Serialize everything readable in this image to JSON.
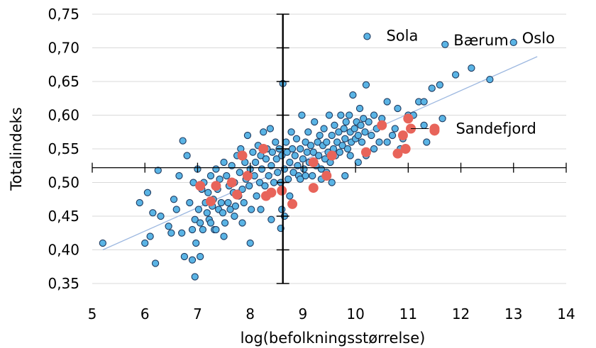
{
  "chart_data": {
    "type": "scatter",
    "title": "",
    "xlabel": "log(befolkningsstørrelse)",
    "ylabel": "Totalindeks",
    "xlim": [
      5,
      14
    ],
    "ylim": [
      0.35,
      0.75
    ],
    "x_ticks": [
      "5",
      "6",
      "7",
      "8",
      "9",
      "10",
      "11",
      "12",
      "13",
      "14"
    ],
    "y_ticks": [
      "0,35",
      "0,40",
      "0,45",
      "0,50",
      "0,55",
      "0,60",
      "0,65",
      "0,70",
      "0,75"
    ],
    "grid": "horizontal",
    "colors": {
      "municipality_fill": "#5ab4e5",
      "municipality_edge": "#1f3a5f",
      "highlight_fill": "#e8645a",
      "trendline": "#9db8e0",
      "crosshair": "#000000"
    },
    "crosshair": {
      "x": 8.62,
      "y": 0.522
    },
    "trendline": {
      "x": [
        5.2,
        13.45
      ],
      "y": [
        0.4,
        0.687
      ]
    },
    "annotations": [
      {
        "text": "Sola",
        "x": 10.22,
        "y": 0.717
      },
      {
        "text": "Bærum",
        "x": 11.7,
        "y": 0.705
      },
      {
        "text": "Oslo",
        "x": 13.0,
        "y": 0.708
      },
      {
        "text": "Sandefjord",
        "x": 11.5,
        "y": 0.58
      }
    ],
    "series": [
      {
        "marker": "municipality",
        "x": [
          5.2,
          5.9,
          6.0,
          6.05,
          6.1,
          6.15,
          6.2,
          6.25,
          6.3,
          6.45,
          6.5,
          6.55,
          6.6,
          6.65,
          6.7,
          6.72,
          6.75,
          6.8,
          6.85,
          6.9,
          6.92,
          6.95,
          6.97,
          7.0,
          7.02,
          7.05,
          7.08,
          7.1,
          7.12,
          7.15,
          7.18,
          7.2,
          7.22,
          7.25,
          7.28,
          7.3,
          7.32,
          7.35,
          7.38,
          7.4,
          7.42,
          7.45,
          7.48,
          7.5,
          7.52,
          7.55,
          7.58,
          7.6,
          7.62,
          7.65,
          7.68,
          7.7,
          7.72,
          7.75,
          7.78,
          7.8,
          7.82,
          7.85,
          7.88,
          7.9,
          7.92,
          7.95,
          7.98,
          8.0,
          8.02,
          8.05,
          8.08,
          8.1,
          8.12,
          8.15,
          8.18,
          8.2,
          8.22,
          8.25,
          8.28,
          8.3,
          8.32,
          8.35,
          8.38,
          8.4,
          8.42,
          8.45,
          8.48,
          8.5,
          8.52,
          8.55,
          8.58,
          8.6,
          8.62,
          8.65,
          8.68,
          8.7,
          8.72,
          8.75,
          8.78,
          8.8,
          8.82,
          8.85,
          8.88,
          8.9,
          8.92,
          8.95,
          8.98,
          9.0,
          9.02,
          9.05,
          9.08,
          9.1,
          9.12,
          9.15,
          9.18,
          9.2,
          9.22,
          9.25,
          9.28,
          9.3,
          9.32,
          9.35,
          9.38,
          9.4,
          9.42,
          9.45,
          9.48,
          9.5,
          9.52,
          9.55,
          9.58,
          9.6,
          9.62,
          9.65,
          9.68,
          9.7,
          9.72,
          9.75,
          9.78,
          9.8,
          9.82,
          9.85,
          9.88,
          9.9,
          9.92,
          9.95,
          9.98,
          10.0,
          10.02,
          10.05,
          10.08,
          10.1,
          10.12,
          10.15,
          10.18,
          10.2,
          10.25,
          10.3,
          10.35,
          10.4,
          10.45,
          10.5,
          10.6,
          10.7,
          10.75,
          10.8,
          10.9,
          11.0,
          11.1,
          11.2,
          11.3,
          11.35,
          11.45,
          11.6,
          11.65,
          11.9,
          12.2,
          12.55,
          6.95,
          7.05,
          7.35,
          7.5,
          7.85,
          8.0,
          8.4,
          8.58,
          8.6,
          8.65,
          8.75,
          9.05,
          9.35,
          9.55,
          9.8,
          10.05,
          10.2,
          10.6,
          10.85,
          11.3,
          6.9,
          7.25,
          7.7,
          8.2,
          8.95,
          9.45,
          9.9,
          10.35
        ],
        "y": [
          0.41,
          0.47,
          0.41,
          0.485,
          0.42,
          0.455,
          0.38,
          0.518,
          0.45,
          0.435,
          0.425,
          0.475,
          0.46,
          0.51,
          0.425,
          0.562,
          0.39,
          0.54,
          0.47,
          0.43,
          0.5,
          0.445,
          0.41,
          0.52,
          0.46,
          0.44,
          0.49,
          0.43,
          0.5,
          0.47,
          0.455,
          0.485,
          0.445,
          0.51,
          0.465,
          0.475,
          0.43,
          0.52,
          0.49,
          0.46,
          0.505,
          0.47,
          0.455,
          0.53,
          0.44,
          0.51,
          0.47,
          0.495,
          0.46,
          0.525,
          0.485,
          0.5,
          0.465,
          0.54,
          0.48,
          0.515,
          0.55,
          0.49,
          0.47,
          0.53,
          0.505,
          0.57,
          0.495,
          0.52,
          0.46,
          0.545,
          0.51,
          0.53,
          0.48,
          0.555,
          0.5,
          0.54,
          0.52,
          0.575,
          0.495,
          0.535,
          0.55,
          0.51,
          0.58,
          0.525,
          0.545,
          0.5,
          0.56,
          0.535,
          0.515,
          0.55,
          0.5,
          0.54,
          0.647,
          0.52,
          0.56,
          0.545,
          0.505,
          0.53,
          0.575,
          0.55,
          0.515,
          0.54,
          0.565,
          0.525,
          0.51,
          0.55,
          0.6,
          0.535,
          0.52,
          0.56,
          0.545,
          0.575,
          0.53,
          0.555,
          0.51,
          0.545,
          0.59,
          0.525,
          0.56,
          0.54,
          0.57,
          0.52,
          0.555,
          0.58,
          0.535,
          0.56,
          0.545,
          0.6,
          0.53,
          0.57,
          0.55,
          0.585,
          0.54,
          0.56,
          0.575,
          0.545,
          0.6,
          0.555,
          0.58,
          0.565,
          0.59,
          0.55,
          0.6,
          0.575,
          0.56,
          0.63,
          0.58,
          0.565,
          0.59,
          0.57,
          0.61,
          0.585,
          0.56,
          0.595,
          0.575,
          0.645,
          0.59,
          0.57,
          0.6,
          0.58,
          0.56,
          0.595,
          0.62,
          0.57,
          0.58,
          0.61,
          0.565,
          0.6,
          0.6,
          0.62,
          0.585,
          0.56,
          0.64,
          0.645,
          0.595,
          0.66,
          0.67,
          0.653,
          0.36,
          0.39,
          0.43,
          0.42,
          0.44,
          0.41,
          0.445,
          0.432,
          0.46,
          0.45,
          0.48,
          0.51,
          0.505,
          0.5,
          0.51,
          0.53,
          0.54,
          0.56,
          0.55,
          0.62,
          0.385,
          0.44,
          0.45,
          0.46,
          0.505,
          0.515,
          0.54,
          0.55
        ]
      },
      {
        "marker": "highlighted",
        "x": [
          7.05,
          7.25,
          7.35,
          7.65,
          7.75,
          7.85,
          7.95,
          8.25,
          8.3,
          8.4,
          8.6,
          8.8,
          9.2,
          9.2,
          9.45,
          9.55,
          10.2,
          10.5,
          10.8,
          10.95,
          11.05,
          11.5,
          11.0,
          10.9
        ],
        "y": [
          0.495,
          0.472,
          0.495,
          0.5,
          0.482,
          0.54,
          0.51,
          0.55,
          0.48,
          0.485,
          0.488,
          0.468,
          0.53,
          0.492,
          0.51,
          0.54,
          0.545,
          0.585,
          0.543,
          0.55,
          0.58,
          0.577,
          0.595,
          0.57
        ]
      }
    ]
  }
}
